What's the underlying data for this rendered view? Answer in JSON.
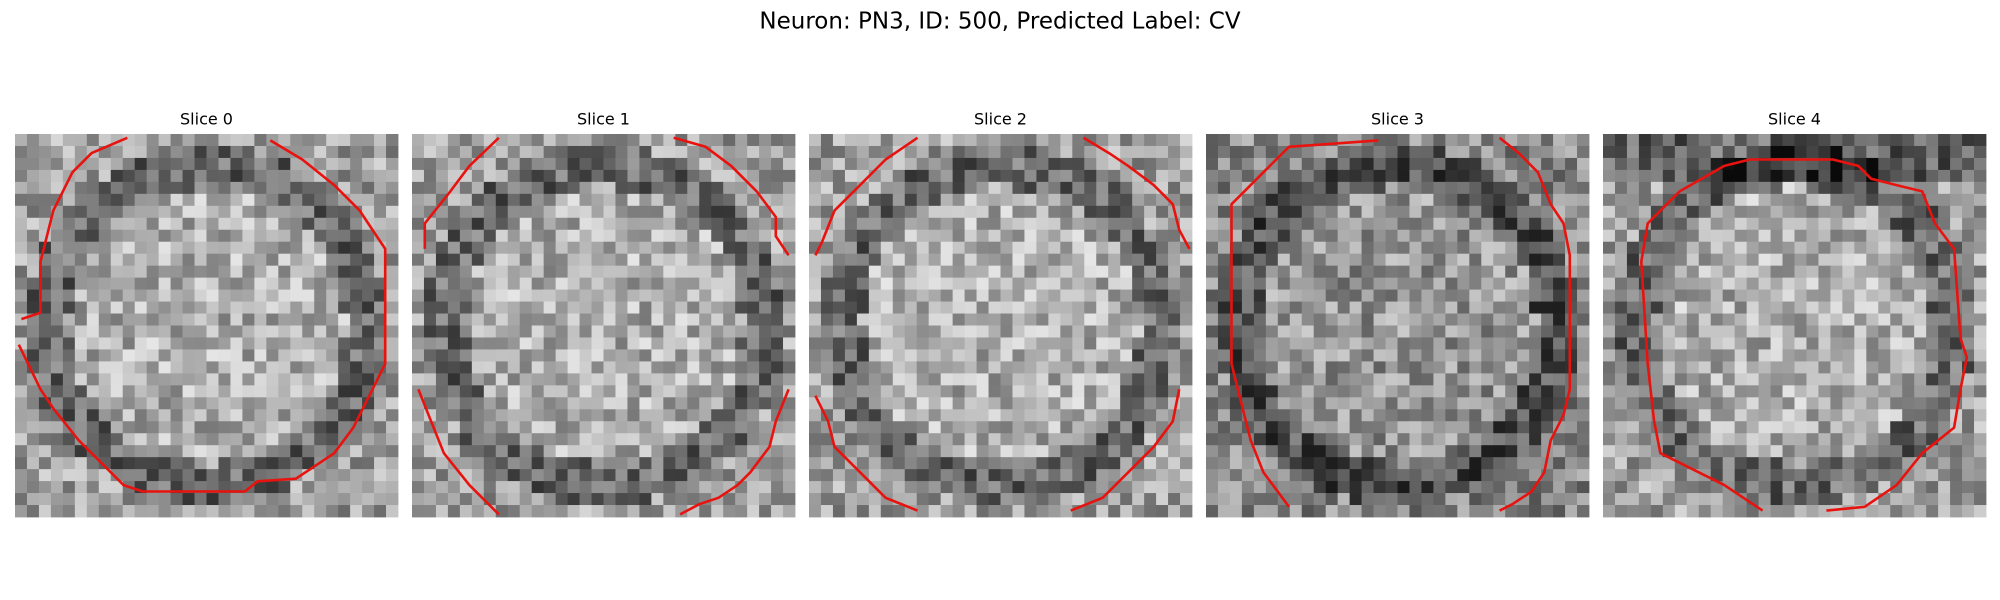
{
  "title": "Neuron: PN3, ID: 500, Predicted Label: CV",
  "panels": [
    {
      "title": "Slice 0"
    },
    {
      "title": "Slice 1"
    },
    {
      "title": "Slice 2"
    },
    {
      "title": "Slice 3"
    },
    {
      "title": "Slice 4"
    }
  ]
}
